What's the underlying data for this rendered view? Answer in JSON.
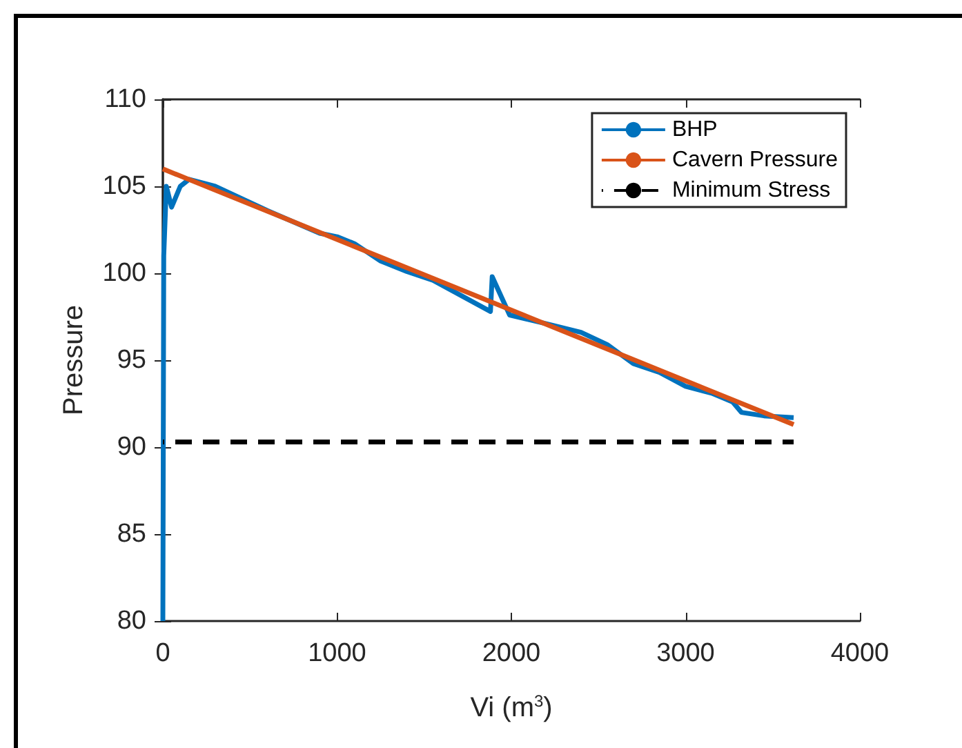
{
  "chart_data": {
    "type": "line",
    "xlabel": "Vi (m$^{3}$)",
    "ylabel": "Pressure",
    "xlim": [
      0,
      4000
    ],
    "xticks": [
      0,
      1000,
      2000,
      3000,
      4000
    ],
    "ylim": [
      80,
      110
    ],
    "yticks": [
      80,
      85,
      90,
      95,
      100,
      105,
      110
    ],
    "grid": false,
    "legend": "top right",
    "marker": "none",
    "line_style": "solid",
    "series": [
      {
        "name": "BHP",
        "color": "#0072bd",
        "x": [
          0,
          5,
          20,
          50,
          100,
          150,
          300,
          600,
          900,
          1000,
          1100,
          1250,
          1400,
          1550,
          1880,
          1890,
          1990,
          2200,
          2400,
          2550,
          2700,
          2850,
          3000,
          3150,
          3270,
          3320,
          3450,
          3620
        ],
        "values": [
          80,
          101,
          105,
          103.8,
          105,
          105.4,
          105,
          103.6,
          102.3,
          102.1,
          101.7,
          100.7,
          100.1,
          99.6,
          97.8,
          99.8,
          97.6,
          97.1,
          96.6,
          95.9,
          94.8,
          94.3,
          93.5,
          93.1,
          92.6,
          92,
          91.8,
          91.7
        ]
      },
      {
        "name": "Cavern Pressure",
        "color": "#d95319",
        "x": [
          0,
          3620
        ],
        "values": [
          106,
          91.3
        ]
      },
      {
        "name": "Minimum Stress",
        "color": "#000000",
        "line_style": "dashed",
        "x": [
          0,
          3620
        ],
        "values": [
          90.3,
          90.3
        ]
      }
    ]
  }
}
